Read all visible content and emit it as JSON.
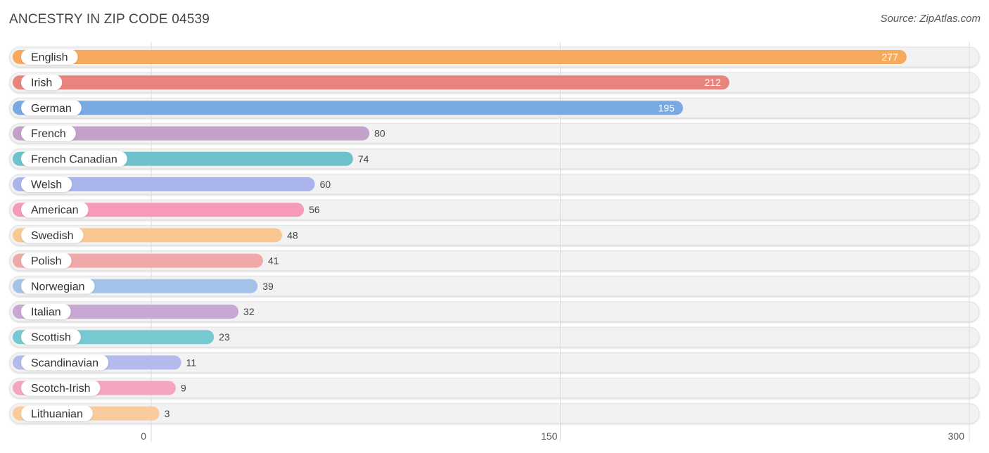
{
  "title": "ANCESTRY IN ZIP CODE 04539",
  "source": "Source: ZipAtlas.com",
  "chart_data": {
    "type": "bar",
    "orientation": "horizontal",
    "title": "ANCESTRY IN ZIP CODE 04539",
    "xlabel": "",
    "ylabel": "",
    "xlim": [
      0,
      300
    ],
    "xticks": [
      0,
      150,
      300
    ],
    "grid": true,
    "categories": [
      "English",
      "Irish",
      "German",
      "French",
      "French Canadian",
      "Welsh",
      "American",
      "Swedish",
      "Polish",
      "Norwegian",
      "Italian",
      "Scottish",
      "Scandinavian",
      "Scotch-Irish",
      "Lithuanian"
    ],
    "values": [
      277,
      212,
      195,
      80,
      74,
      60,
      56,
      48,
      41,
      39,
      32,
      23,
      11,
      9,
      3
    ],
    "colors": [
      "#f7a95c",
      "#e8847e",
      "#78a9e0",
      "#c3a2c9",
      "#6dc2cc",
      "#a9b4ea",
      "#f59ab8",
      "#f9c792",
      "#eea9a8",
      "#a3c3ea",
      "#c8a8d2",
      "#77c8d0",
      "#b3bbec",
      "#f5a5c2",
      "#f9cb9d"
    ]
  }
}
